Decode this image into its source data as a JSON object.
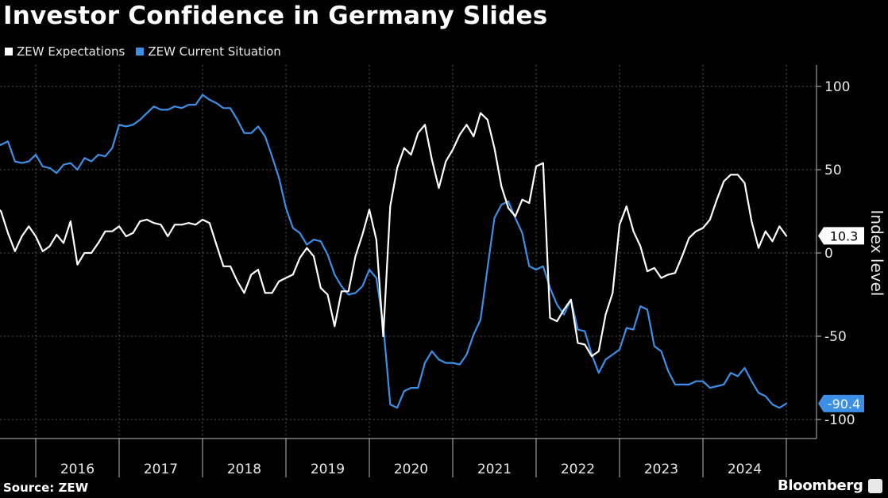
{
  "title": "Investor Confidence in Germany Slides",
  "source": "Source: ZEW",
  "brand": "Bloomberg",
  "colors": {
    "background": "#000000",
    "expectations": "#ffffff",
    "current": "#3d8fe6",
    "grid": "#555555"
  },
  "chart_data": {
    "type": "line",
    "title": "Investor Confidence in Germany Slides",
    "ylabel": "Index level",
    "xlabel": "",
    "ylim": [
      -110,
      110
    ],
    "yticks": [
      100,
      50,
      0,
      -50,
      -100
    ],
    "ytick_labels": [
      "100",
      "50",
      "0",
      "-50",
      "-100"
    ],
    "x_range": [
      "2015-07",
      "2024-09"
    ],
    "year_labels": [
      "2016",
      "2017",
      "2018",
      "2019",
      "2020",
      "2021",
      "2022",
      "2023",
      "2024"
    ],
    "grid": true,
    "legend_position": "top-left",
    "series": [
      {
        "name": "ZEW Expectations",
        "color": "#ffffff",
        "end_label": "10.3",
        "points": [
          [
            "2015-07",
            29
          ],
          [
            "2015-08",
            25
          ],
          [
            "2015-09",
            12
          ],
          [
            "2015-10",
            1
          ],
          [
            "2015-11",
            10
          ],
          [
            "2015-12",
            16
          ],
          [
            "2016-01",
            10
          ],
          [
            "2016-02",
            1
          ],
          [
            "2016-03",
            4
          ],
          [
            "2016-04",
            11
          ],
          [
            "2016-05",
            6
          ],
          [
            "2016-06",
            19
          ],
          [
            "2016-07",
            -7
          ],
          [
            "2016-08",
            0
          ],
          [
            "2016-09",
            0
          ],
          [
            "2016-10",
            6
          ],
          [
            "2016-11",
            13
          ],
          [
            "2016-12",
            13
          ],
          [
            "2017-01",
            16
          ],
          [
            "2017-02",
            10
          ],
          [
            "2017-03",
            12
          ],
          [
            "2017-04",
            19
          ],
          [
            "2017-05",
            20
          ],
          [
            "2017-06",
            18
          ],
          [
            "2017-07",
            17
          ],
          [
            "2017-08",
            10
          ],
          [
            "2017-09",
            17
          ],
          [
            "2017-10",
            17
          ],
          [
            "2017-11",
            18
          ],
          [
            "2017-12",
            17
          ],
          [
            "2018-01",
            20
          ],
          [
            "2018-02",
            18
          ],
          [
            "2018-03",
            5
          ],
          [
            "2018-04",
            -8
          ],
          [
            "2018-05",
            -8
          ],
          [
            "2018-06",
            -17
          ],
          [
            "2018-07",
            -24
          ],
          [
            "2018-08",
            -13
          ],
          [
            "2018-09",
            -10
          ],
          [
            "2018-10",
            -24
          ],
          [
            "2018-11",
            -24
          ],
          [
            "2018-12",
            -17
          ],
          [
            "2019-01",
            -15
          ],
          [
            "2019-02",
            -13
          ],
          [
            "2019-03",
            -3
          ],
          [
            "2019-04",
            3
          ],
          [
            "2019-05",
            -2
          ],
          [
            "2019-06",
            -21
          ],
          [
            "2019-07",
            -25
          ],
          [
            "2019-08",
            -44
          ],
          [
            "2019-09",
            -23
          ],
          [
            "2019-10",
            -23
          ],
          [
            "2019-11",
            -2
          ],
          [
            "2019-12",
            11
          ],
          [
            "2020-01",
            26
          ],
          [
            "2020-02",
            8
          ],
          [
            "2020-03",
            -50
          ],
          [
            "2020-04",
            28
          ],
          [
            "2020-05",
            51
          ],
          [
            "2020-06",
            63
          ],
          [
            "2020-07",
            59
          ],
          [
            "2020-08",
            72
          ],
          [
            "2020-09",
            77
          ],
          [
            "2020-10",
            56
          ],
          [
            "2020-11",
            39
          ],
          [
            "2020-12",
            55
          ],
          [
            "2021-01",
            62
          ],
          [
            "2021-02",
            71
          ],
          [
            "2021-03",
            77
          ],
          [
            "2021-04",
            70
          ],
          [
            "2021-05",
            84
          ],
          [
            "2021-06",
            80
          ],
          [
            "2021-07",
            63
          ],
          [
            "2021-08",
            40
          ],
          [
            "2021-09",
            27
          ],
          [
            "2021-10",
            22
          ],
          [
            "2021-11",
            32
          ],
          [
            "2021-12",
            30
          ],
          [
            "2022-01",
            52
          ],
          [
            "2022-02",
            54
          ],
          [
            "2022-03",
            -39
          ],
          [
            "2022-04",
            -41
          ],
          [
            "2022-05",
            -34
          ],
          [
            "2022-06",
            -28
          ],
          [
            "2022-07",
            -54
          ],
          [
            "2022-08",
            -55
          ],
          [
            "2022-09",
            -62
          ],
          [
            "2022-10",
            -59
          ],
          [
            "2022-11",
            -37
          ],
          [
            "2022-12",
            -24
          ],
          [
            "2023-01",
            17
          ],
          [
            "2023-02",
            28
          ],
          [
            "2023-03",
            13
          ],
          [
            "2023-04",
            4
          ],
          [
            "2023-05",
            -11
          ],
          [
            "2023-06",
            -9
          ],
          [
            "2023-07",
            -15
          ],
          [
            "2023-08",
            -13
          ],
          [
            "2023-09",
            -12
          ],
          [
            "2023-10",
            -2
          ],
          [
            "2023-11",
            9
          ],
          [
            "2023-12",
            13
          ],
          [
            "2024-01",
            15
          ],
          [
            "2024-02",
            20
          ],
          [
            "2024-03",
            32
          ],
          [
            "2024-04",
            43
          ],
          [
            "2024-05",
            47
          ],
          [
            "2024-06",
            47
          ],
          [
            "2024-07",
            42
          ],
          [
            "2024-08",
            19
          ],
          [
            "2024-09",
            3
          ],
          [
            "2024-10",
            13
          ],
          [
            "2024-11",
            7
          ],
          [
            "2024-12",
            16
          ],
          [
            "2025-01",
            10.3
          ]
        ]
      },
      {
        "name": "ZEW Current Situation",
        "color": "#3d8fe6",
        "end_label": "-90.4",
        "points": [
          [
            "2015-07",
            64
          ],
          [
            "2015-08",
            65
          ],
          [
            "2015-09",
            67
          ],
          [
            "2015-10",
            55
          ],
          [
            "2015-11",
            54
          ],
          [
            "2015-12",
            55
          ],
          [
            "2016-01",
            59
          ],
          [
            "2016-02",
            52
          ],
          [
            "2016-03",
            51
          ],
          [
            "2016-04",
            48
          ],
          [
            "2016-05",
            53
          ],
          [
            "2016-06",
            54
          ],
          [
            "2016-07",
            50
          ],
          [
            "2016-08",
            57
          ],
          [
            "2016-09",
            55
          ],
          [
            "2016-10",
            59
          ],
          [
            "2016-11",
            58
          ],
          [
            "2016-12",
            63
          ],
          [
            "2017-01",
            77
          ],
          [
            "2017-02",
            76
          ],
          [
            "2017-03",
            77
          ],
          [
            "2017-04",
            80
          ],
          [
            "2017-05",
            84
          ],
          [
            "2017-06",
            88
          ],
          [
            "2017-07",
            86
          ],
          [
            "2017-08",
            86
          ],
          [
            "2017-09",
            88
          ],
          [
            "2017-10",
            87
          ],
          [
            "2017-11",
            89
          ],
          [
            "2017-12",
            89
          ],
          [
            "2018-01",
            95
          ],
          [
            "2018-02",
            92
          ],
          [
            "2018-03",
            90
          ],
          [
            "2018-04",
            87
          ],
          [
            "2018-05",
            87
          ],
          [
            "2018-06",
            80
          ],
          [
            "2018-07",
            72
          ],
          [
            "2018-08",
            72
          ],
          [
            "2018-09",
            76
          ],
          [
            "2018-10",
            70
          ],
          [
            "2018-11",
            58
          ],
          [
            "2018-12",
            45
          ],
          [
            "2019-01",
            27
          ],
          [
            "2019-02",
            15
          ],
          [
            "2019-03",
            12
          ],
          [
            "2019-04",
            5
          ],
          [
            "2019-05",
            8
          ],
          [
            "2019-06",
            7
          ],
          [
            "2019-07",
            -1
          ],
          [
            "2019-08",
            -13
          ],
          [
            "2019-09",
            -20
          ],
          [
            "2019-10",
            -25
          ],
          [
            "2019-11",
            -24
          ],
          [
            "2019-12",
            -20
          ],
          [
            "2020-01",
            -10
          ],
          [
            "2020-02",
            -15
          ],
          [
            "2020-03",
            -43
          ],
          [
            "2020-04",
            -91
          ],
          [
            "2020-05",
            -93
          ],
          [
            "2020-06",
            -83
          ],
          [
            "2020-07",
            -81
          ],
          [
            "2020-08",
            -81
          ],
          [
            "2020-09",
            -66
          ],
          [
            "2020-10",
            -59
          ],
          [
            "2020-11",
            -64
          ],
          [
            "2020-12",
            -66
          ],
          [
            "2021-01",
            -66
          ],
          [
            "2021-02",
            -67
          ],
          [
            "2021-03",
            -61
          ],
          [
            "2021-04",
            -49
          ],
          [
            "2021-05",
            -40
          ],
          [
            "2021-06",
            -9
          ],
          [
            "2021-07",
            21
          ],
          [
            "2021-08",
            29
          ],
          [
            "2021-09",
            31
          ],
          [
            "2021-10",
            21
          ],
          [
            "2021-11",
            12
          ],
          [
            "2021-12",
            -8
          ],
          [
            "2022-01",
            -10
          ],
          [
            "2022-02",
            -8
          ],
          [
            "2022-03",
            -21
          ],
          [
            "2022-04",
            -31
          ],
          [
            "2022-05",
            -37
          ],
          [
            "2022-06",
            -28
          ],
          [
            "2022-07",
            -46
          ],
          [
            "2022-08",
            -47
          ],
          [
            "2022-09",
            -61
          ],
          [
            "2022-10",
            -72
          ],
          [
            "2022-11",
            -64
          ],
          [
            "2022-12",
            -61
          ],
          [
            "2023-01",
            -58
          ],
          [
            "2023-02",
            -45
          ],
          [
            "2023-03",
            -46
          ],
          [
            "2023-04",
            -32
          ],
          [
            "2023-05",
            -34
          ],
          [
            "2023-06",
            -56
          ],
          [
            "2023-07",
            -59
          ],
          [
            "2023-08",
            -71
          ],
          [
            "2023-09",
            -79
          ],
          [
            "2023-10",
            -79
          ],
          [
            "2023-11",
            -79
          ],
          [
            "2023-12",
            -77
          ],
          [
            "2024-01",
            -77
          ],
          [
            "2024-02",
            -81
          ],
          [
            "2024-03",
            -80
          ],
          [
            "2024-04",
            -79
          ],
          [
            "2024-05",
            -72
          ],
          [
            "2024-06",
            -74
          ],
          [
            "2024-07",
            -69
          ],
          [
            "2024-08",
            -77
          ],
          [
            "2024-09",
            -84
          ],
          [
            "2024-10",
            -86
          ],
          [
            "2024-11",
            -91
          ],
          [
            "2024-12",
            -93
          ],
          [
            "2025-01",
            -90.4
          ]
        ]
      }
    ]
  }
}
